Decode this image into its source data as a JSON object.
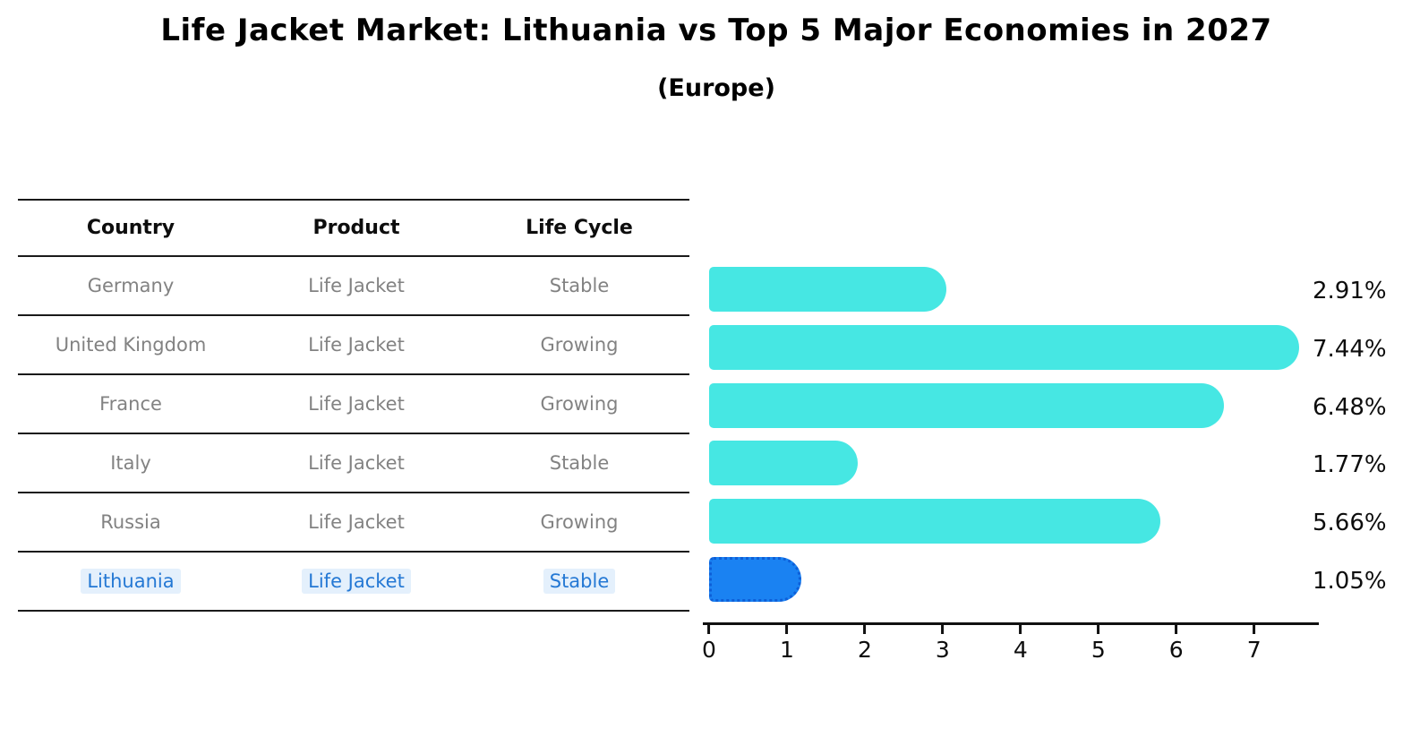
{
  "title": "Life Jacket Market: Lithuania vs Top 5 Major Economies in 2027",
  "subtitle": "(Europe)",
  "table": {
    "headers": {
      "country": "Country",
      "product": "Product",
      "life_cycle": "Life Cycle"
    },
    "rows": [
      {
        "country": "Germany",
        "product": "Life Jacket",
        "life_cycle": "Stable"
      },
      {
        "country": "United Kingdom",
        "product": "Life Jacket",
        "life_cycle": "Growing"
      },
      {
        "country": "France",
        "product": "Life Jacket",
        "life_cycle": "Growing"
      },
      {
        "country": "Italy",
        "product": "Life Jacket",
        "life_cycle": "Stable"
      },
      {
        "country": "Russia",
        "product": "Life Jacket",
        "life_cycle": "Growing"
      },
      {
        "country": "Lithuania",
        "product": "Life Jacket",
        "life_cycle": "Stable"
      }
    ],
    "highlighted_row": "Lithuania"
  },
  "chart_data": {
    "type": "bar",
    "orientation": "horizontal",
    "categories": [
      "Germany",
      "United Kingdom",
      "France",
      "Italy",
      "Russia",
      "Lithuania"
    ],
    "values": [
      2.91,
      7.44,
      6.48,
      1.77,
      5.66,
      1.05
    ],
    "value_labels": [
      "2.91%",
      "7.44%",
      "6.48%",
      "1.77%",
      "5.66%",
      "1.05%"
    ],
    "x_ticks": [
      "0",
      "1",
      "2",
      "3",
      "4",
      "5",
      "6",
      "7"
    ],
    "xlim": [
      0,
      7.82
    ],
    "grid": false,
    "legend": false,
    "highlight_index": 5,
    "bar_color": "#46E7E3",
    "highlight_bar_color": "#1A82F2",
    "highlight_border_color": "#0E5FD8"
  },
  "colors": {
    "background": "#FFFFFF",
    "title_text": "#000000",
    "table_line": "#1A1A1A",
    "table_header_text": "#0D0D0D",
    "table_cell_text": "#828282",
    "highlight_text": "#2478D4",
    "axis": "#111111",
    "value_label_text": "#0D0D0D"
  }
}
